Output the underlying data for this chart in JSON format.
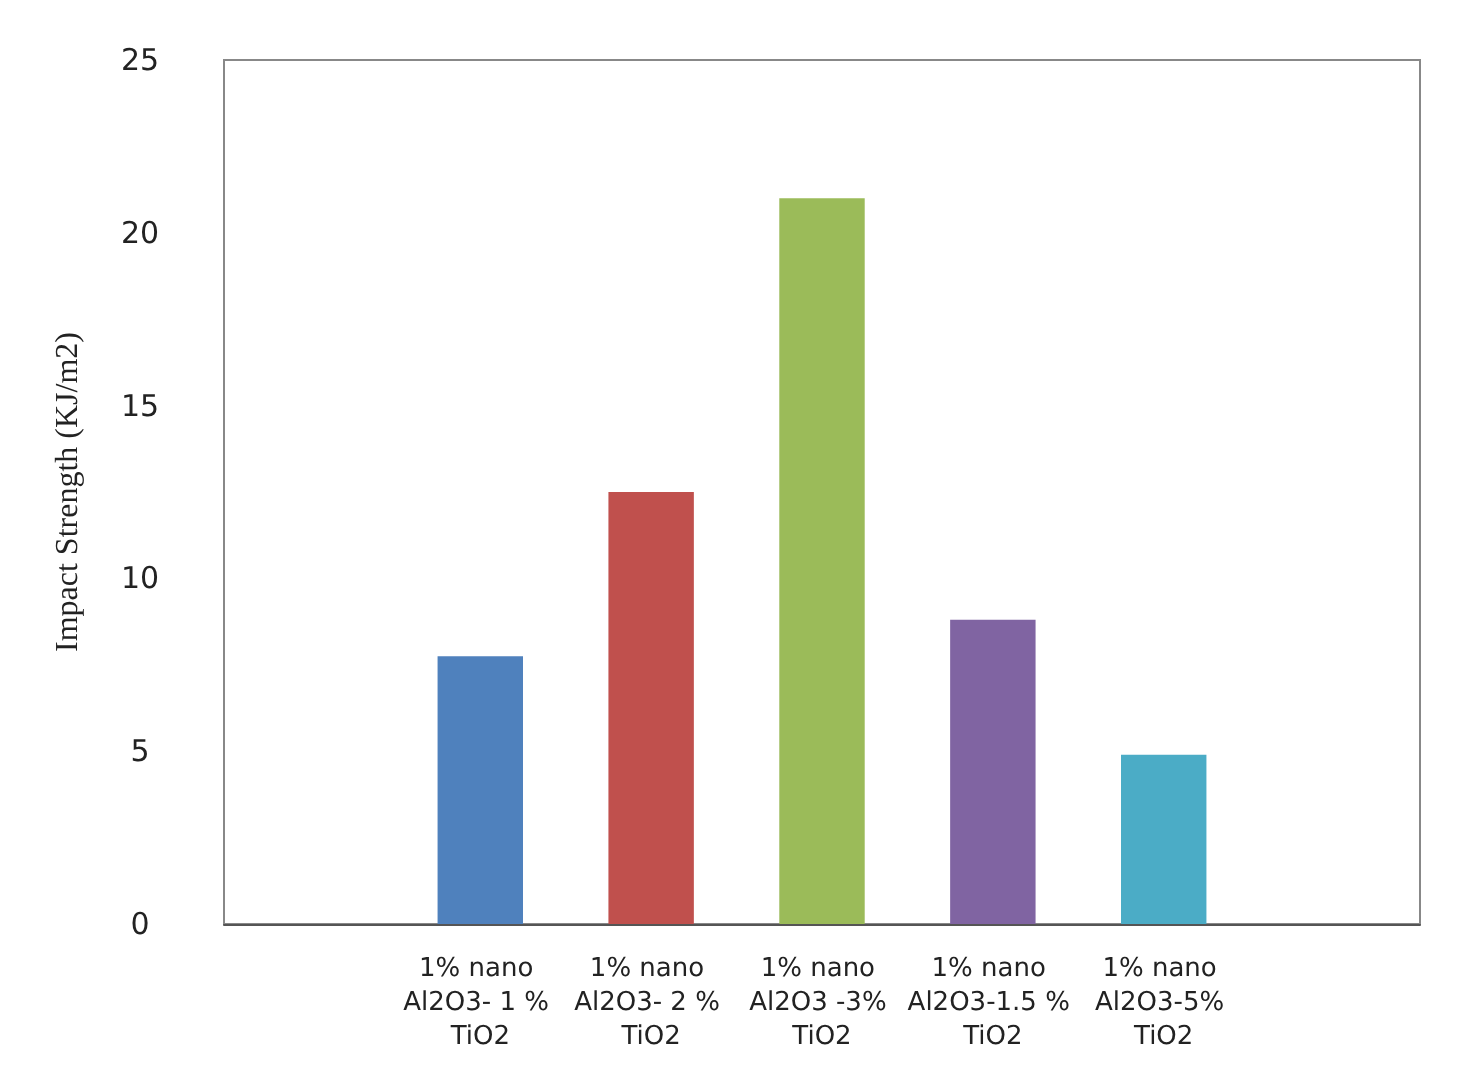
{
  "chart_data": {
    "type": "bar",
    "ylabel": "Impact Strength (KJ/m2)",
    "categories": [
      null,
      "1% nano Al2O3- 1 % TiO2",
      "1% nano Al2O3- 2 % TiO2",
      "1% nano Al2O3 -3% TiO2",
      "1% nano Al2O3-1.5 % TiO2",
      "1% nano Al2O3-5% TiO2",
      null
    ],
    "values": [
      null,
      7.75,
      12.5,
      21,
      8.8,
      4.9,
      null
    ],
    "colors": [
      null,
      "#4f81bd",
      "#c0504d",
      "#9bbb59",
      "#8064a2",
      "#4bacc6",
      null
    ],
    "ylim": [
      0,
      25
    ],
    "yticks": [
      0,
      5,
      10,
      15,
      20,
      25
    ]
  }
}
